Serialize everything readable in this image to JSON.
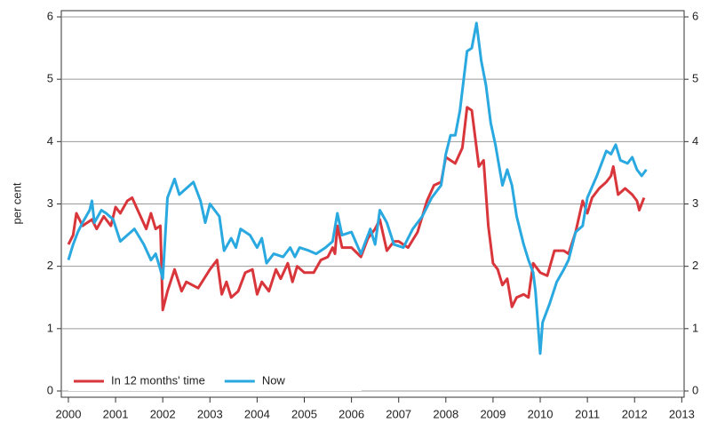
{
  "chart_data": {
    "type": "line",
    "y_label": "per cent",
    "xlim": [
      1999.85,
      2013.05
    ],
    "xticks": [
      2000,
      2001,
      2002,
      2003,
      2004,
      2005,
      2006,
      2007,
      2008,
      2009,
      2010,
      2011,
      2012,
      2013
    ],
    "ylim": [
      -0.1,
      6.1
    ],
    "yticks": [
      0,
      1,
      2,
      3,
      4,
      5,
      6
    ],
    "y2lim": [
      -0.1,
      6.1
    ],
    "y2ticks": [
      0,
      1,
      2,
      3,
      4,
      5,
      6
    ],
    "grid": true,
    "legend": "lower left",
    "series": [
      {
        "name": "In 12 months' time",
        "color": "#d9363c",
        "x": [
          2000.0,
          2000.1,
          2000.17,
          2000.3,
          2000.5,
          2000.6,
          2000.75,
          2000.9,
          2001.0,
          2001.1,
          2001.25,
          2001.35,
          2001.5,
          2001.65,
          2001.75,
          2001.85,
          2001.95,
          2002.0,
          2002.1,
          2002.25,
          2002.4,
          2002.5,
          2002.75,
          2003.0,
          2003.15,
          2003.25,
          2003.35,
          2003.45,
          2003.6,
          2003.75,
          2003.9,
          2004.0,
          2004.1,
          2004.25,
          2004.4,
          2004.5,
          2004.65,
          2004.75,
          2004.85,
          2005.0,
          2005.2,
          2005.35,
          2005.5,
          2005.6,
          2005.65,
          2005.7,
          2005.8,
          2006.0,
          2006.2,
          2006.35,
          2006.5,
          2006.6,
          2006.75,
          2006.9,
          2007.0,
          2007.2,
          2007.4,
          2007.6,
          2007.75,
          2007.9,
          2008.0,
          2008.2,
          2008.35,
          2008.45,
          2008.55,
          2008.7,
          2008.8,
          2008.9,
          2009.0,
          2009.1,
          2009.2,
          2009.3,
          2009.4,
          2009.5,
          2009.65,
          2009.75,
          2009.85,
          2010.0,
          2010.15,
          2010.3,
          2010.5,
          2010.6,
          2010.75,
          2010.9,
          2011.0,
          2011.1,
          2011.25,
          2011.4,
          2011.5,
          2011.55,
          2011.65,
          2011.8,
          2011.95,
          2012.05,
          2012.1,
          2012.2
        ],
        "values": [
          2.35,
          2.5,
          2.85,
          2.65,
          2.75,
          2.6,
          2.8,
          2.65,
          2.95,
          2.85,
          3.05,
          3.1,
          2.85,
          2.6,
          2.85,
          2.6,
          2.65,
          1.3,
          1.6,
          1.95,
          1.6,
          1.75,
          1.65,
          1.95,
          2.1,
          1.55,
          1.75,
          1.5,
          1.6,
          1.9,
          1.95,
          1.55,
          1.75,
          1.6,
          1.95,
          1.8,
          2.05,
          1.75,
          2.0,
          1.9,
          1.9,
          2.1,
          2.15,
          2.3,
          2.2,
          2.65,
          2.3,
          2.3,
          2.15,
          2.45,
          2.6,
          2.75,
          2.25,
          2.4,
          2.4,
          2.3,
          2.55,
          3.05,
          3.3,
          3.35,
          3.75,
          3.65,
          3.9,
          4.55,
          4.5,
          3.6,
          3.7,
          2.65,
          2.05,
          1.95,
          1.7,
          1.8,
          1.35,
          1.5,
          1.55,
          1.5,
          2.05,
          1.9,
          1.85,
          2.25,
          2.25,
          2.2,
          2.55,
          3.05,
          2.85,
          3.1,
          3.25,
          3.35,
          3.45,
          3.6,
          3.15,
          3.25,
          3.15,
          3.05,
          2.9,
          3.1
        ]
      },
      {
        "name": "Now",
        "color": "#2aa9e0",
        "x": [
          2000.0,
          2000.1,
          2000.2,
          2000.3,
          2000.45,
          2000.5,
          2000.55,
          2000.7,
          2000.8,
          2000.95,
          2001.1,
          2001.25,
          2001.4,
          2001.6,
          2001.75,
          2001.85,
          2001.95,
          2002.0,
          2002.1,
          2002.25,
          2002.35,
          2002.5,
          2002.65,
          2002.8,
          2002.9,
          2003.0,
          2003.2,
          2003.3,
          2003.45,
          2003.55,
          2003.65,
          2003.85,
          2004.0,
          2004.1,
          2004.2,
          2004.35,
          2004.55,
          2004.7,
          2004.8,
          2004.9,
          2005.1,
          2005.25,
          2005.45,
          2005.6,
          2005.7,
          2005.8,
          2006.0,
          2006.2,
          2006.4,
          2006.5,
          2006.6,
          2006.75,
          2006.9,
          2007.1,
          2007.3,
          2007.5,
          2007.7,
          2007.9,
          2008.0,
          2008.1,
          2008.2,
          2008.3,
          2008.45,
          2008.55,
          2008.65,
          2008.75,
          2008.85,
          2008.95,
          2009.05,
          2009.2,
          2009.3,
          2009.4,
          2009.5,
          2009.65,
          2009.75,
          2009.85,
          2009.9,
          2010.0,
          2010.05,
          2010.2,
          2010.35,
          2010.5,
          2010.6,
          2010.75,
          2010.9,
          2011.0,
          2011.2,
          2011.3,
          2011.4,
          2011.5,
          2011.6,
          2011.7,
          2011.85,
          2011.95,
          2012.05,
          2012.15,
          2012.25
        ],
        "values": [
          2.1,
          2.35,
          2.55,
          2.7,
          2.9,
          3.05,
          2.7,
          2.9,
          2.85,
          2.75,
          2.4,
          2.5,
          2.6,
          2.35,
          2.1,
          2.2,
          1.95,
          1.8,
          3.1,
          3.4,
          3.15,
          3.25,
          3.35,
          3.05,
          2.7,
          3.0,
          2.8,
          2.25,
          2.45,
          2.3,
          2.6,
          2.5,
          2.3,
          2.45,
          2.05,
          2.2,
          2.15,
          2.3,
          2.15,
          2.3,
          2.25,
          2.2,
          2.3,
          2.4,
          2.85,
          2.5,
          2.55,
          2.2,
          2.6,
          2.35,
          2.9,
          2.7,
          2.35,
          2.3,
          2.6,
          2.8,
          3.1,
          3.3,
          3.8,
          4.1,
          4.1,
          4.5,
          5.45,
          5.5,
          5.9,
          5.3,
          4.9,
          4.3,
          3.95,
          3.3,
          3.55,
          3.3,
          2.8,
          2.35,
          2.1,
          1.9,
          1.6,
          0.6,
          1.1,
          1.4,
          1.75,
          1.95,
          2.1,
          2.55,
          2.65,
          3.1,
          3.45,
          3.65,
          3.85,
          3.8,
          3.95,
          3.7,
          3.65,
          3.75,
          3.55,
          3.45,
          3.55
        ]
      }
    ]
  }
}
